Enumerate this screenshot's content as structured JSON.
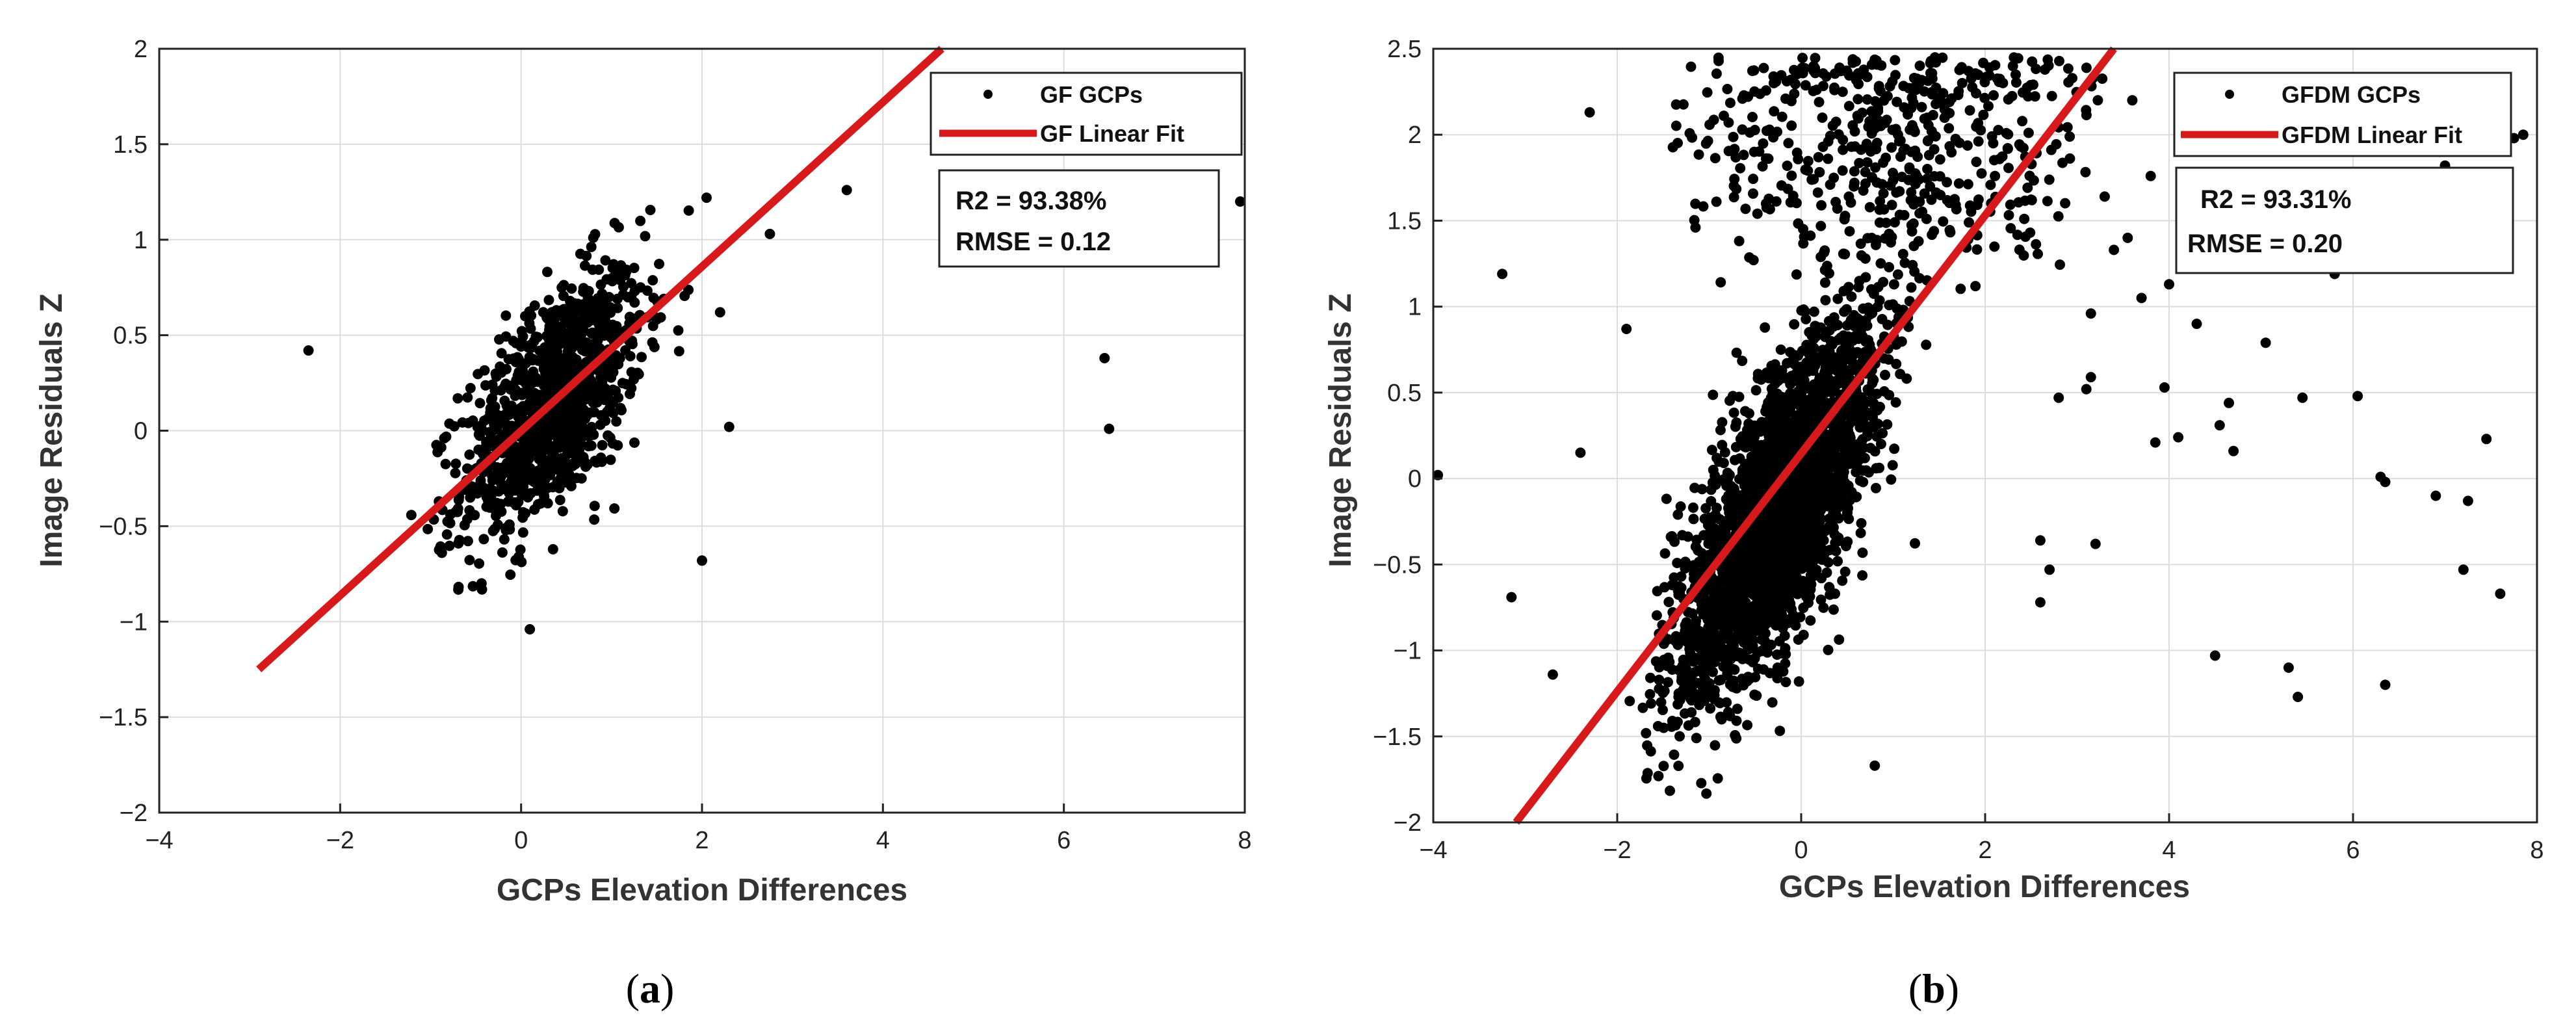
{
  "chart_data": [
    {
      "type": "scatter",
      "id": "a",
      "caption_letter": "a",
      "xlabel": "GCPs Elevation Differences",
      "ylabel": "Image Residuals Z",
      "xlim": [
        -4,
        8
      ],
      "ylim": [
        -2,
        2
      ],
      "xticks": [
        -4,
        -2,
        0,
        2,
        4,
        6,
        8
      ],
      "yticks": [
        -2,
        -1.5,
        -1,
        -0.5,
        0,
        0.5,
        1,
        1.5,
        2
      ],
      "xtick_labels": [
        "−4",
        "−2",
        "0",
        "2",
        "4",
        "6",
        "8"
      ],
      "ytick_labels": [
        "−2",
        "−1.5",
        "−1",
        "−0.5",
        "0",
        "0.5",
        "1",
        "1.5",
        "2"
      ],
      "grid": true,
      "legend_position": "top-right",
      "series": [
        {
          "name": "GF GCPs",
          "kind": "points",
          "color": "#000000",
          "cluster": {
            "count": 1100,
            "x_mean": 0.35,
            "x_sd": 0.5,
            "slope": 0.42,
            "intercept": 0.0,
            "noise_sd": 0.28,
            "xmin": -1.5,
            "xmax": 2.3,
            "ymin": -1.25,
            "ymax": 1.25
          },
          "outliers": [
            {
              "x": -2.35,
              "y": 0.42
            },
            {
              "x": 6.45,
              "y": 0.38
            },
            {
              "x": 6.5,
              "y": 0.01
            },
            {
              "x": 7.95,
              "y": 1.2
            },
            {
              "x": 3.6,
              "y": 1.26
            },
            {
              "x": 2.75,
              "y": 1.03
            },
            {
              "x": 2.3,
              "y": 0.02
            },
            {
              "x": 2.0,
              "y": -0.68
            },
            {
              "x": 2.05,
              "y": 1.22
            },
            {
              "x": 2.2,
              "y": 0.62
            }
          ]
        },
        {
          "name": "GF Linear Fit",
          "kind": "line",
          "color": "#d7191c",
          "x": [
            -2.9,
            4.65
          ],
          "y": [
            -1.25,
            2.0
          ]
        }
      ],
      "stats": [
        "R2 = 93.38%",
        "RMSE = 0.12"
      ]
    },
    {
      "type": "scatter",
      "id": "b",
      "caption_letter": "b",
      "xlabel": "GCPs Elevation Differences",
      "ylabel": "Image Residuals Z",
      "xlim": [
        -4,
        8
      ],
      "ylim": [
        -2,
        2.5
      ],
      "xticks": [
        -4,
        -2,
        0,
        2,
        4,
        6,
        8
      ],
      "yticks": [
        -2,
        -1.5,
        -1,
        -0.5,
        0,
        0.5,
        1,
        1.5,
        2,
        2.5
      ],
      "xtick_labels": [
        "−4",
        "−2",
        "0",
        "2",
        "4",
        "6",
        "8"
      ],
      "ytick_labels": [
        "−2",
        "−1.5",
        "−1",
        "−0.5",
        "0",
        "0.5",
        "1",
        "1.5",
        "2",
        "2.5"
      ],
      "grid": true,
      "legend_position": "top-right",
      "series": [
        {
          "name": "GFDM GCPs",
          "kind": "points",
          "color": "#000000",
          "cluster": {
            "count": 2600,
            "x_mean": -0.25,
            "x_sd": 0.55,
            "slope": 0.72,
            "intercept": 0.0,
            "noise_sd": 0.38,
            "xmin": -1.9,
            "xmax": 2.0,
            "ymin": -1.85,
            "ymax": 1.6
          },
          "upper_band": {
            "count": 550,
            "xmin": -1.4,
            "xmax": 3.3,
            "ymin": 1.0,
            "ymax": 2.45
          },
          "outliers": [
            {
              "x": -3.95,
              "y": 0.02
            },
            {
              "x": -3.25,
              "y": 1.19
            },
            {
              "x": -3.15,
              "y": -0.69
            },
            {
              "x": -2.4,
              "y": 0.15
            },
            {
              "x": -2.3,
              "y": 2.13
            },
            {
              "x": -2.7,
              "y": -1.14
            },
            {
              "x": -1.9,
              "y": 0.87
            },
            {
              "x": 0.8,
              "y": -1.67
            },
            {
              "x": 2.6,
              "y": -0.72
            },
            {
              "x": 2.6,
              "y": -0.36
            },
            {
              "x": 2.7,
              "y": -0.53
            },
            {
              "x": 2.8,
              "y": 0.47
            },
            {
              "x": 3.2,
              "y": -0.38
            },
            {
              "x": 3.15,
              "y": 0.96
            },
            {
              "x": 3.1,
              "y": 0.52
            },
            {
              "x": 3.15,
              "y": 0.59
            },
            {
              "x": 3.4,
              "y": 1.33
            },
            {
              "x": 3.7,
              "y": 1.05
            },
            {
              "x": 3.85,
              "y": 0.21
            },
            {
              "x": 3.95,
              "y": 0.53
            },
            {
              "x": 4.0,
              "y": 1.13
            },
            {
              "x": 4.1,
              "y": 0.24
            },
            {
              "x": 4.3,
              "y": 0.9
            },
            {
              "x": 4.55,
              "y": 0.31
            },
            {
              "x": 4.65,
              "y": 0.44
            },
            {
              "x": 4.7,
              "y": 0.16
            },
            {
              "x": 4.5,
              "y": -1.03
            },
            {
              "x": 5.05,
              "y": 0.79
            },
            {
              "x": 5.3,
              "y": -1.1
            },
            {
              "x": 5.4,
              "y": -1.27
            },
            {
              "x": 5.45,
              "y": 0.47
            },
            {
              "x": 5.8,
              "y": 1.19
            },
            {
              "x": 6.05,
              "y": 0.48
            },
            {
              "x": 6.3,
              "y": 0.01
            },
            {
              "x": 6.35,
              "y": -0.02
            },
            {
              "x": 6.35,
              "y": -1.2
            },
            {
              "x": 6.9,
              "y": -0.1
            },
            {
              "x": 7.2,
              "y": -0.53
            },
            {
              "x": 7.25,
              "y": -0.13
            },
            {
              "x": 7.45,
              "y": 0.23
            },
            {
              "x": 7.6,
              "y": -0.67
            },
            {
              "x": 7.0,
              "y": 1.82
            },
            {
              "x": 7.75,
              "y": 1.98
            },
            {
              "x": 7.85,
              "y": 2.0
            },
            {
              "x": 3.6,
              "y": 2.2
            },
            {
              "x": 3.8,
              "y": 1.76
            },
            {
              "x": 3.3,
              "y": 1.64
            },
            {
              "x": 3.55,
              "y": 1.4
            }
          ]
        },
        {
          "name": "GFDM Linear Fit",
          "kind": "line",
          "color": "#d7191c",
          "x": [
            -3.1,
            3.4
          ],
          "y": [
            -2.0,
            2.5
          ]
        }
      ],
      "stats": [
        "R2 = 93.31%",
        "RMSE = 0.20"
      ]
    }
  ]
}
